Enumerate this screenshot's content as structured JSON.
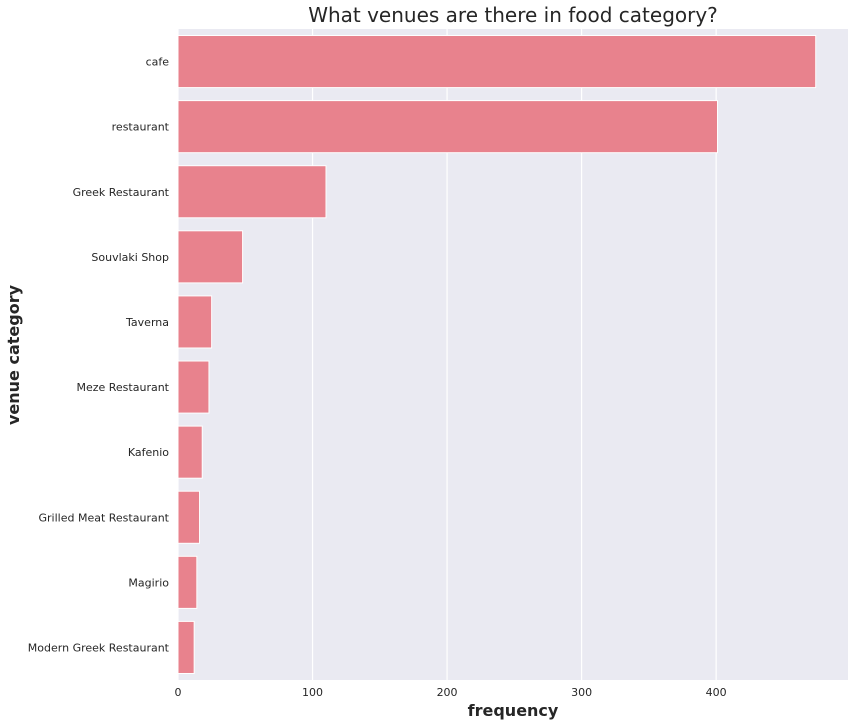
{
  "chart_data": {
    "type": "bar",
    "orientation": "horizontal",
    "title": "What venues are there in food category?",
    "xlabel": "frequency",
    "ylabel": "venue category",
    "categories": [
      "cafe",
      "restaurant",
      "Greek Restaurant",
      "Souvlaki Shop",
      "Taverna",
      "Meze Restaurant",
      "Kafenio",
      "Grilled Meat Restaurant",
      "Magirio",
      "Modern Greek Restaurant"
    ],
    "values": [
      474,
      401,
      110,
      48,
      25,
      23,
      18,
      16,
      14,
      12
    ],
    "xlim": [
      0,
      498
    ],
    "xticks": [
      0,
      100,
      200,
      300,
      400
    ],
    "grid": true,
    "colors": {
      "bar": "#e8828d",
      "background": "#eaeaf2",
      "grid": "#ffffff",
      "text": "#262626"
    }
  }
}
